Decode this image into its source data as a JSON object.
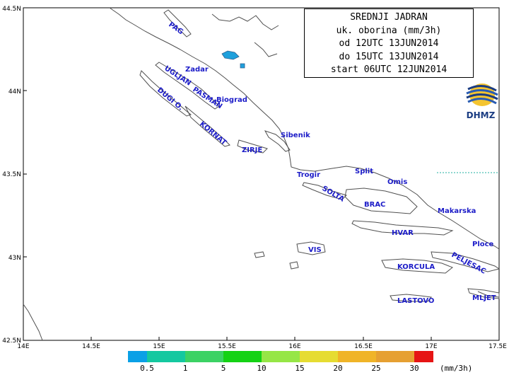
{
  "info_box": {
    "lines": [
      "SREDNJI JADRAN",
      "uk. oborina (mm/3h)",
      "od 12UTC 13JUN2014",
      "do 15UTC 13JUN2014",
      "start 06UTC 12JUN2014"
    ]
  },
  "logo": {
    "text": "DHMZ"
  },
  "axes": {
    "lon_ticks": [
      "14E",
      "14.5E",
      "15E",
      "15.5E",
      "16E",
      "16.5E",
      "17E",
      "17.5E"
    ],
    "lat_ticks": [
      "44.5N",
      "44N",
      "43.5N",
      "43N",
      "42.5N"
    ]
  },
  "places": [
    {
      "name": "PAG"
    },
    {
      "name": "Zadar"
    },
    {
      "name": "UGLJAN"
    },
    {
      "name": "PASMAN"
    },
    {
      "name": "Biograd"
    },
    {
      "name": "DUGI O."
    },
    {
      "name": "KORNAT"
    },
    {
      "name": "Sibenik"
    },
    {
      "name": "ZIRJE"
    },
    {
      "name": "Trogir"
    },
    {
      "name": "Split"
    },
    {
      "name": "Omis"
    },
    {
      "name": "SOLTA"
    },
    {
      "name": "BRAC"
    },
    {
      "name": "Makarska"
    },
    {
      "name": "HVAR"
    },
    {
      "name": "Ploce"
    },
    {
      "name": "VIS"
    },
    {
      "name": "PELJESAC"
    },
    {
      "name": "KORCULA"
    },
    {
      "name": "LASTOVO"
    },
    {
      "name": "MLJET"
    }
  ],
  "legend": {
    "unit": "(mm/3h)",
    "levels": [
      "0.5",
      "1",
      "5",
      "10",
      "15",
      "20",
      "25",
      "30"
    ],
    "colors": [
      "#0aa0e6",
      "#14c8a0",
      "#3cd264",
      "#14d214",
      "#96e646",
      "#e6dc32",
      "#f0b428",
      "#e6a032",
      "#e61414"
    ]
  },
  "precip_colors": {
    "light": "#1ea0dc"
  }
}
